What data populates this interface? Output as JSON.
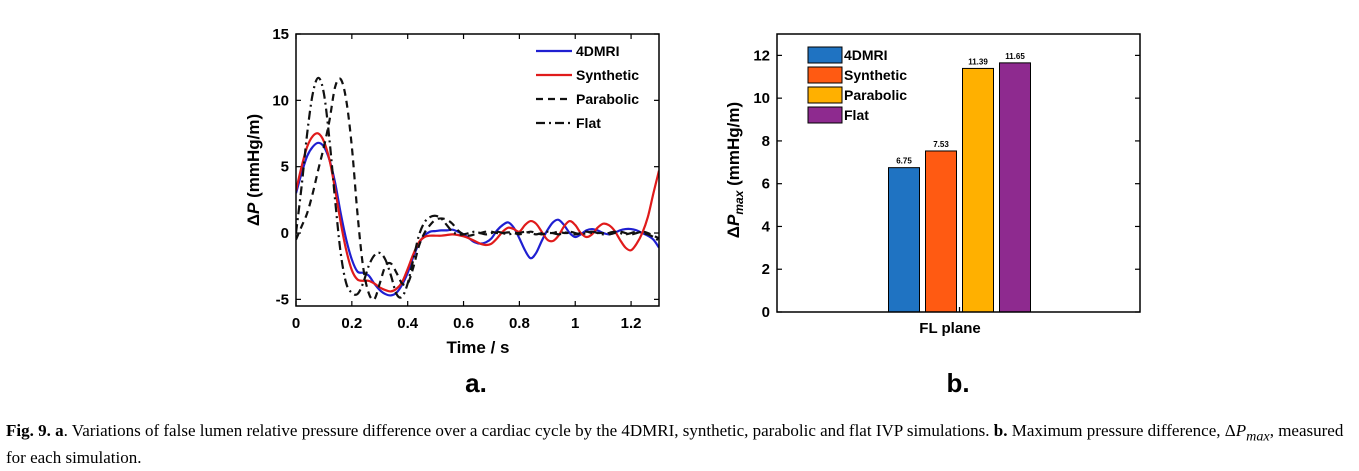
{
  "chart_data": [
    {
      "type": "line",
      "panel_label": "a.",
      "xlabel": "Time / s",
      "ylabel_prefix": "Δ",
      "ylabel_symbol": "P",
      "ylabel_units": " (mmHg/m)",
      "xlim": [
        0,
        1.3
      ],
      "ylim": [
        -5.5,
        15
      ],
      "xticks": [
        "0",
        "0.2",
        "0.4",
        "0.6",
        "0.8",
        "1",
        "1.2"
      ],
      "yticks": [
        "-5",
        "0",
        "5",
        "10",
        "15"
      ],
      "legend_position": "top-right",
      "series": [
        {
          "name": "4DMRI",
          "color": "#1f1fd1",
          "style": "solid",
          "x": [
            0,
            0.02,
            0.04,
            0.06,
            0.08,
            0.1,
            0.12,
            0.14,
            0.16,
            0.18,
            0.2,
            0.22,
            0.24,
            0.26,
            0.28,
            0.3,
            0.32,
            0.34,
            0.36,
            0.38,
            0.4,
            0.42,
            0.44,
            0.46,
            0.48,
            0.5,
            0.52,
            0.54,
            0.56,
            0.58,
            0.6,
            0.62,
            0.64,
            0.66,
            0.68,
            0.7,
            0.72,
            0.74,
            0.76,
            0.78,
            0.8,
            0.82,
            0.84,
            0.86,
            0.88,
            0.9,
            0.92,
            0.94,
            0.96,
            0.98,
            1.0,
            1.02,
            1.04,
            1.06,
            1.08,
            1.1,
            1.12,
            1.14,
            1.16,
            1.18,
            1.2,
            1.22,
            1.24,
            1.26,
            1.28,
            1.3
          ],
          "y": [
            3.0,
            4.5,
            5.8,
            6.5,
            6.8,
            6.5,
            5.5,
            3.8,
            1.5,
            -0.5,
            -2.0,
            -2.9,
            -3.0,
            -3.2,
            -3.8,
            -4.3,
            -4.6,
            -4.7,
            -4.5,
            -3.9,
            -3.0,
            -1.8,
            -0.8,
            -0.2,
            0.1,
            0.15,
            0.2,
            0.2,
            0.25,
            0.1,
            -0.1,
            -0.4,
            -0.7,
            -0.8,
            -0.7,
            -0.4,
            0.2,
            0.6,
            0.8,
            0.4,
            -0.4,
            -1.3,
            -1.9,
            -1.5,
            -0.6,
            0.2,
            0.8,
            1.0,
            0.6,
            0.0,
            -0.3,
            -0.1,
            0.2,
            0.3,
            0.2,
            0.0,
            -0.1,
            0.0,
            0.2,
            0.3,
            0.3,
            0.2,
            0.0,
            -0.2,
            -0.5,
            -1.1
          ]
        },
        {
          "name": "Synthetic",
          "color": "#e01b1b",
          "style": "solid",
          "x": [
            0,
            0.02,
            0.04,
            0.06,
            0.08,
            0.1,
            0.12,
            0.14,
            0.16,
            0.18,
            0.2,
            0.22,
            0.24,
            0.26,
            0.28,
            0.3,
            0.32,
            0.34,
            0.36,
            0.38,
            0.4,
            0.42,
            0.44,
            0.46,
            0.48,
            0.5,
            0.52,
            0.54,
            0.56,
            0.58,
            0.6,
            0.62,
            0.64,
            0.66,
            0.68,
            0.7,
            0.72,
            0.74,
            0.76,
            0.78,
            0.8,
            0.82,
            0.84,
            0.86,
            0.88,
            0.9,
            0.92,
            0.94,
            0.96,
            0.98,
            1.0,
            1.02,
            1.04,
            1.06,
            1.08,
            1.1,
            1.12,
            1.14,
            1.16,
            1.18,
            1.2,
            1.22,
            1.24,
            1.26,
            1.28,
            1.3
          ],
          "y": [
            3.2,
            5.0,
            6.5,
            7.3,
            7.5,
            6.9,
            5.5,
            3.3,
            0.8,
            -1.3,
            -2.8,
            -3.5,
            -3.6,
            -3.6,
            -3.8,
            -4.1,
            -4.3,
            -4.4,
            -4.2,
            -3.7,
            -2.7,
            -1.6,
            -0.7,
            -0.3,
            -0.2,
            -0.2,
            -0.2,
            -0.15,
            -0.1,
            -0.15,
            -0.25,
            -0.4,
            -0.6,
            -0.8,
            -0.9,
            -0.8,
            -0.4,
            0.1,
            0.4,
            0.3,
            0.1,
            0.6,
            0.9,
            0.7,
            0.1,
            -0.5,
            -0.6,
            -0.2,
            0.5,
            0.9,
            0.6,
            0.0,
            -0.3,
            -0.1,
            0.4,
            0.7,
            0.6,
            0.2,
            -0.5,
            -1.1,
            -1.3,
            -0.8,
            0.0,
            1.2,
            3.0,
            4.7
          ]
        },
        {
          "name": "Parabolic",
          "color": "#111111",
          "style": "dashed",
          "x": [
            0,
            0.02,
            0.04,
            0.06,
            0.08,
            0.1,
            0.12,
            0.14,
            0.16,
            0.18,
            0.2,
            0.22,
            0.24,
            0.26,
            0.28,
            0.3,
            0.32,
            0.34,
            0.36,
            0.38,
            0.4,
            0.42,
            0.44,
            0.46,
            0.48,
            0.5,
            0.52,
            0.54,
            0.56,
            0.58,
            0.6,
            0.62,
            0.64,
            0.66,
            0.68,
            0.7,
            0.72,
            0.74,
            0.76,
            0.78,
            0.8,
            0.82,
            0.84,
            0.86,
            0.88,
            0.9,
            0.92,
            0.94,
            0.96,
            0.98,
            1.0,
            1.02,
            1.04,
            1.06,
            1.08,
            1.1,
            1.12,
            1.14,
            1.16,
            1.18,
            1.2,
            1.22,
            1.24,
            1.26,
            1.28,
            1.3
          ],
          "y": [
            -0.5,
            0.5,
            1.5,
            3.0,
            4.8,
            6.5,
            8.5,
            11.0,
            11.6,
            10.0,
            6.5,
            1.5,
            -2.5,
            -4.5,
            -5.0,
            -3.8,
            -2.5,
            -2.3,
            -3.0,
            -3.8,
            -3.8,
            -2.6,
            -1.0,
            0.0,
            0.6,
            1.0,
            1.1,
            1.0,
            0.7,
            0.2,
            -0.1,
            -0.2,
            -0.1,
            0.0,
            0.1,
            0.1,
            0.0,
            0.0,
            0.05,
            0.0,
            -0.1,
            0.0,
            0.1,
            0.0,
            -0.1,
            0.0,
            0.0,
            0.1,
            0.0,
            0.0,
            -0.1,
            0.0,
            0.1,
            0.0,
            0.0,
            0.0,
            -0.1,
            0.0,
            0.1,
            0.0,
            -0.1,
            0.0,
            0.1,
            0.0,
            -0.2,
            -0.4
          ]
        },
        {
          "name": "Flat",
          "color": "#111111",
          "style": "dashdot",
          "x": [
            0,
            0.02,
            0.04,
            0.06,
            0.08,
            0.1,
            0.12,
            0.14,
            0.16,
            0.18,
            0.2,
            0.22,
            0.24,
            0.26,
            0.28,
            0.3,
            0.32,
            0.34,
            0.36,
            0.38,
            0.4,
            0.42,
            0.44,
            0.46,
            0.48,
            0.5,
            0.52,
            0.54,
            0.56,
            0.58,
            0.6,
            0.62,
            0.64,
            0.66,
            0.68,
            0.7,
            0.72,
            0.74,
            0.76,
            0.78,
            0.8,
            0.82,
            0.84,
            0.86,
            0.88,
            0.9,
            0.92,
            0.94,
            0.96,
            0.98,
            1.0,
            1.02,
            1.04,
            1.06,
            1.08,
            1.1,
            1.12,
            1.14,
            1.16,
            1.18,
            1.2,
            1.22,
            1.24,
            1.26,
            1.28,
            1.3
          ],
          "y": [
            0.0,
            3.5,
            7.5,
            10.5,
            11.7,
            10.5,
            7.0,
            2.5,
            -1.5,
            -3.8,
            -4.5,
            -4.6,
            -3.8,
            -2.5,
            -1.7,
            -1.5,
            -2.0,
            -3.2,
            -4.6,
            -4.8,
            -3.8,
            -2.0,
            -0.2,
            0.8,
            1.2,
            1.3,
            1.1,
            0.6,
            0.1,
            -0.1,
            -0.1,
            0.0,
            0.1,
            0.0,
            -0.1,
            0.0,
            0.1,
            0.0,
            -0.1,
            0.0,
            0.0,
            0.1,
            0.0,
            -0.1,
            0.0,
            0.1,
            0.0,
            -0.1,
            0.0,
            0.1,
            0.0,
            -0.1,
            0.0,
            0.1,
            0.0,
            -0.1,
            0.0,
            0.1,
            0.0,
            -0.1,
            0.0,
            0.1,
            0.0,
            -0.1,
            -0.3,
            -0.6
          ]
        }
      ]
    },
    {
      "type": "bar",
      "panel_label": "b.",
      "categories": [
        "FL plane"
      ],
      "ylabel_prefix": "Δ",
      "ylabel_symbol": "P",
      "ylabel_sub": "max",
      "ylabel_units": " (mmHg/m)",
      "ylim": [
        0,
        13
      ],
      "yticks": [
        "0",
        "2",
        "4",
        "6",
        "8",
        "10",
        "12"
      ],
      "legend_position": "top-left",
      "series": [
        {
          "name": "4DMRI",
          "values": [
            6.75
          ],
          "label": "6.75",
          "color": "#1f73c2"
        },
        {
          "name": "Synthetic",
          "values": [
            7.53
          ],
          "label": "7.53",
          "color": "#ff5a12"
        },
        {
          "name": "Parabolic",
          "values": [
            11.39
          ],
          "label": "11.39",
          "color": "#ffb000"
        },
        {
          "name": "Flat",
          "values": [
            11.65
          ],
          "label": "11.65",
          "color": "#8e2a8f"
        }
      ]
    }
  ],
  "caption": {
    "fig_label": "Fig. 9.",
    "part_a": "a",
    "text_a": ". Variations of false lumen relative pressure difference over a cardiac cycle by the 4DMRI, synthetic, parabolic and flat IVP simulations.",
    "part_b": "b.",
    "text_b_1": "Maximum pressure difference, ",
    "delta": "Δ",
    "symbol": "P",
    "sub": "max",
    "text_b_2": ", measured for each simulation."
  }
}
